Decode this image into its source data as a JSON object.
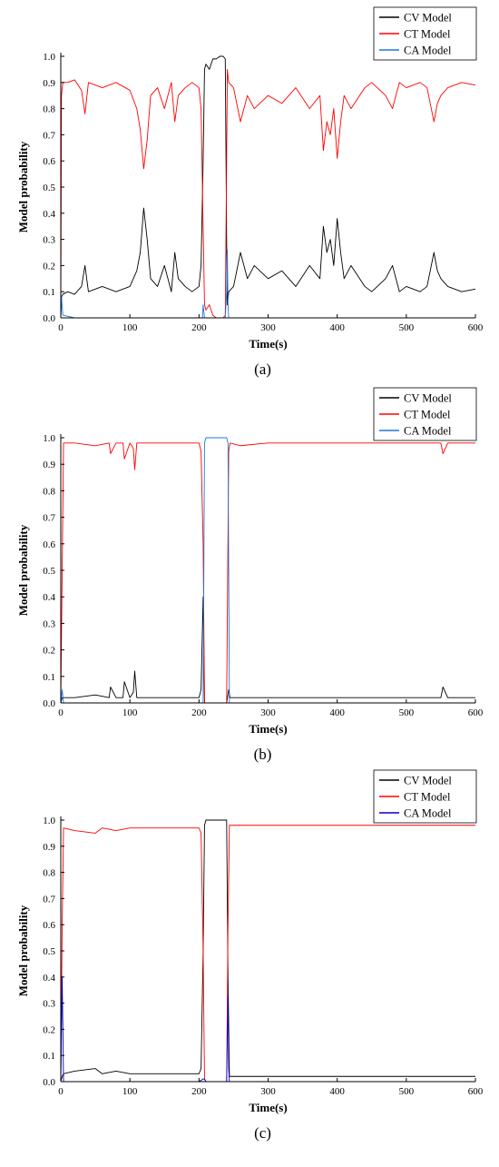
{
  "chart_data": [
    {
      "type": "line",
      "panel_label": "(a)",
      "xlabel": "Time(s)",
      "ylabel": "Model probability",
      "xlim": [
        0,
        600
      ],
      "ylim": [
        0,
        1.0
      ],
      "xticks": [
        0,
        100,
        200,
        300,
        400,
        500,
        600
      ],
      "yticks": [
        0.0,
        0.1,
        0.2,
        0.3,
        0.4,
        0.5,
        0.6,
        0.7,
        0.8,
        0.9,
        1.0
      ],
      "legend_position": "top-right",
      "grid": false,
      "series": [
        {
          "name": "CV Model",
          "color": "#000000",
          "x": [
            0,
            1,
            3,
            10,
            20,
            30,
            35,
            40,
            60,
            80,
            100,
            110,
            115,
            120,
            125,
            130,
            140,
            150,
            160,
            165,
            170,
            180,
            190,
            200,
            203,
            206,
            208,
            210,
            215,
            220,
            225,
            230,
            235,
            238,
            240,
            241,
            243,
            250,
            260,
            270,
            280,
            300,
            320,
            340,
            360,
            375,
            380,
            385,
            390,
            395,
            400,
            405,
            410,
            420,
            440,
            450,
            470,
            480,
            490,
            500,
            520,
            530,
            540,
            545,
            550,
            560,
            580,
            600
          ],
          "y": [
            0.0,
            0.08,
            0.09,
            0.1,
            0.09,
            0.12,
            0.2,
            0.1,
            0.12,
            0.1,
            0.12,
            0.18,
            0.25,
            0.42,
            0.3,
            0.15,
            0.12,
            0.2,
            0.1,
            0.25,
            0.15,
            0.12,
            0.1,
            0.12,
            0.2,
            0.6,
            0.95,
            0.97,
            0.95,
            0.99,
            0.99,
            1.0,
            1.0,
            0.99,
            0.3,
            0.05,
            0.1,
            0.12,
            0.25,
            0.15,
            0.2,
            0.15,
            0.18,
            0.12,
            0.2,
            0.15,
            0.35,
            0.25,
            0.3,
            0.2,
            0.38,
            0.25,
            0.15,
            0.2,
            0.12,
            0.1,
            0.15,
            0.2,
            0.1,
            0.12,
            0.1,
            0.12,
            0.25,
            0.18,
            0.15,
            0.12,
            0.1,
            0.11
          ]
        },
        {
          "name": "CT Model",
          "color": "#ff0000",
          "x": [
            0,
            1,
            3,
            10,
            20,
            30,
            35,
            40,
            60,
            80,
            100,
            110,
            115,
            120,
            125,
            130,
            140,
            150,
            160,
            165,
            170,
            180,
            190,
            200,
            203,
            206,
            208,
            210,
            215,
            220,
            225,
            230,
            235,
            238,
            240,
            241,
            243,
            250,
            260,
            270,
            280,
            300,
            320,
            340,
            360,
            375,
            380,
            385,
            390,
            395,
            400,
            405,
            410,
            420,
            440,
            450,
            470,
            480,
            490,
            500,
            520,
            530,
            540,
            545,
            550,
            560,
            580,
            600
          ],
          "y": [
            0.0,
            0.85,
            0.9,
            0.9,
            0.91,
            0.87,
            0.78,
            0.9,
            0.88,
            0.9,
            0.87,
            0.8,
            0.72,
            0.57,
            0.68,
            0.85,
            0.88,
            0.8,
            0.9,
            0.75,
            0.85,
            0.88,
            0.9,
            0.88,
            0.8,
            0.35,
            0.05,
            0.03,
            0.05,
            0.01,
            0.0,
            0.0,
            0.0,
            0.01,
            0.6,
            0.95,
            0.9,
            0.88,
            0.75,
            0.85,
            0.8,
            0.85,
            0.82,
            0.88,
            0.8,
            0.85,
            0.64,
            0.75,
            0.7,
            0.8,
            0.61,
            0.75,
            0.85,
            0.8,
            0.88,
            0.9,
            0.85,
            0.8,
            0.9,
            0.88,
            0.9,
            0.88,
            0.75,
            0.82,
            0.85,
            0.88,
            0.9,
            0.89
          ]
        },
        {
          "name": "CA Model",
          "color": "#1e78dc",
          "x": [
            0,
            1,
            3,
            20,
            200,
            205,
            206,
            208,
            210,
            215,
            220,
            225,
            230,
            235,
            238,
            240,
            241,
            242,
            243,
            250,
            400,
            600
          ],
          "y": [
            0.0,
            0.08,
            0.01,
            0.0,
            0.0,
            0.0,
            0.05,
            0.0,
            0.0,
            0.0,
            0.0,
            0.0,
            0.0,
            0.0,
            0.0,
            0.1,
            0.26,
            0.05,
            0.0,
            0.0,
            0.0,
            0.0
          ]
        }
      ]
    },
    {
      "type": "line",
      "panel_label": "(b)",
      "xlabel": "Time(s)",
      "ylabel": "Model probability",
      "xlim": [
        0,
        600
      ],
      "ylim": [
        0,
        1.0
      ],
      "xticks": [
        0,
        100,
        200,
        300,
        400,
        500,
        600
      ],
      "yticks": [
        0.0,
        0.1,
        0.2,
        0.3,
        0.4,
        0.5,
        0.6,
        0.7,
        0.8,
        0.9,
        1.0
      ],
      "legend_position": "top-right",
      "grid": false,
      "series": [
        {
          "name": "CV Model",
          "color": "#000000",
          "x": [
            0,
            2,
            4,
            20,
            50,
            70,
            72,
            80,
            90,
            92,
            100,
            105,
            107,
            110,
            150,
            200,
            203,
            206,
            208,
            240,
            243,
            245,
            260,
            300,
            350,
            400,
            450,
            500,
            550,
            553,
            560,
            600
          ],
          "y": [
            0.0,
            0.02,
            0.02,
            0.02,
            0.03,
            0.02,
            0.06,
            0.02,
            0.02,
            0.08,
            0.02,
            0.04,
            0.12,
            0.02,
            0.02,
            0.02,
            0.05,
            0.4,
            0.0,
            0.0,
            0.05,
            0.02,
            0.02,
            0.02,
            0.02,
            0.02,
            0.02,
            0.02,
            0.02,
            0.06,
            0.02,
            0.02
          ]
        },
        {
          "name": "CT Model",
          "color": "#ff0000",
          "x": [
            0,
            2,
            4,
            20,
            50,
            70,
            72,
            80,
            90,
            92,
            100,
            105,
            107,
            110,
            150,
            200,
            203,
            206,
            208,
            240,
            243,
            245,
            260,
            300,
            350,
            400,
            450,
            500,
            550,
            553,
            560,
            600
          ],
          "y": [
            0.0,
            0.5,
            0.98,
            0.98,
            0.97,
            0.98,
            0.94,
            0.98,
            0.98,
            0.92,
            0.98,
            0.96,
            0.88,
            0.98,
            0.98,
            0.98,
            0.95,
            0.6,
            0.0,
            0.0,
            0.95,
            0.98,
            0.97,
            0.98,
            0.98,
            0.98,
            0.98,
            0.98,
            0.98,
            0.94,
            0.98,
            0.98
          ]
        },
        {
          "name": "CA Model",
          "color": "#1e78dc",
          "x": [
            0,
            2,
            4,
            200,
            206,
            208,
            210,
            240,
            242,
            244,
            600
          ],
          "y": [
            0.0,
            0.05,
            0.0,
            0.0,
            0.0,
            0.98,
            1.0,
            1.0,
            0.98,
            0.0,
            0.0
          ]
        }
      ]
    },
    {
      "type": "line",
      "panel_label": "(c)",
      "xlabel": "Time(s)",
      "ylabel": "Model probability",
      "xlim": [
        0,
        600
      ],
      "ylim": [
        0,
        1.0
      ],
      "xticks": [
        0,
        100,
        200,
        300,
        400,
        500,
        600
      ],
      "yticks": [
        0.0,
        0.1,
        0.2,
        0.3,
        0.4,
        0.5,
        0.6,
        0.7,
        0.8,
        0.9,
        1.0
      ],
      "legend_position": "top-right",
      "grid": false,
      "series": [
        {
          "name": "CV Model",
          "color": "#000000",
          "x": [
            0,
            2,
            4,
            20,
            50,
            60,
            80,
            100,
            150,
            200,
            203,
            206,
            208,
            210,
            220,
            230,
            240,
            242,
            244,
            250,
            300,
            400,
            500,
            550,
            600
          ],
          "y": [
            0.0,
            0.02,
            0.03,
            0.04,
            0.05,
            0.03,
            0.04,
            0.03,
            0.03,
            0.03,
            0.05,
            0.5,
            0.98,
            1.0,
            1.0,
            1.0,
            1.0,
            0.4,
            0.02,
            0.02,
            0.02,
            0.02,
            0.02,
            0.02,
            0.02
          ]
        },
        {
          "name": "CT Model",
          "color": "#ff0000",
          "x": [
            0,
            2,
            4,
            20,
            50,
            60,
            80,
            100,
            150,
            200,
            203,
            206,
            208,
            210,
            220,
            230,
            240,
            242,
            244,
            250,
            300,
            400,
            500,
            550,
            600
          ],
          "y": [
            0.0,
            0.6,
            0.97,
            0.96,
            0.95,
            0.97,
            0.96,
            0.97,
            0.97,
            0.97,
            0.95,
            0.5,
            0.01,
            0.0,
            0.0,
            0.0,
            0.0,
            0.6,
            0.98,
            0.98,
            0.98,
            0.98,
            0.98,
            0.98,
            0.98
          ]
        },
        {
          "name": "CA Model",
          "color": "#0000cc",
          "x": [
            0,
            2,
            4,
            200,
            206,
            208,
            210,
            240,
            242,
            243,
            244,
            600
          ],
          "y": [
            0.0,
            0.4,
            0.0,
            0.0,
            0.01,
            0.01,
            0.0,
            0.0,
            0.33,
            0.05,
            0.0,
            0.0
          ]
        }
      ]
    }
  ]
}
